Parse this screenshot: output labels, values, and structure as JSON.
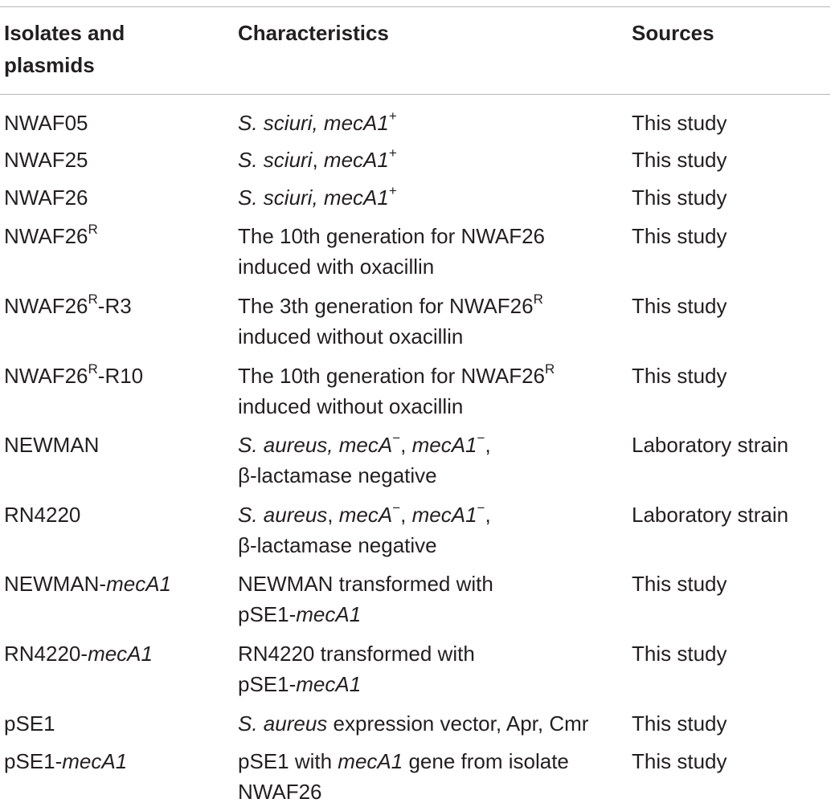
{
  "header": {
    "col1_line1": "Isolates and",
    "col1_line2": "plasmids",
    "col2": "Characteristics",
    "col3": "Sources"
  },
  "rows": [
    {
      "isolate": {
        "a": "NWAF05"
      },
      "char": {
        "a": "S. sciuri, mecA1",
        "a_sup": "+"
      },
      "source": "This study"
    },
    {
      "isolate": {
        "a": "NWAF25"
      },
      "char": {
        "a": "S. sciuri",
        "b": ", ",
        "c": "mecA1",
        "c_sup": "+"
      },
      "source": "This study"
    },
    {
      "isolate": {
        "a": "NWAF26"
      },
      "char": {
        "a": "S. sciuri, mecA1",
        "a_sup": "+"
      },
      "source": "This study"
    },
    {
      "isolate": {
        "a": "NWAF26",
        "sup": "R"
      },
      "char": {
        "line1": "The 10th generation for NWAF26",
        "line2": "induced with oxacillin"
      },
      "source": "This study"
    },
    {
      "isolate": {
        "a": "NWAF26",
        "sup": "R",
        "b": "-R3"
      },
      "char": {
        "line1": "The 3th generation for NWAF26",
        "line1_sup": "R",
        "line2": "induced without oxacillin"
      },
      "source": "This study"
    },
    {
      "isolate": {
        "a": "NWAF26",
        "sup": "R",
        "b": "-R10"
      },
      "char": {
        "line1": "The 10th generation for NWAF26",
        "line1_sup": "R",
        "line2": "induced without oxacillin"
      },
      "source": "This study"
    },
    {
      "isolate": {
        "a": "NEWMAN"
      },
      "char": {
        "a": "S. aureus, mecA",
        "a_sup": "−",
        "b": ", ",
        "c": "mecA1",
        "c_sup": "−",
        "d": ",",
        "line2": "β-lactamase negative"
      },
      "source": "Laboratory strain"
    },
    {
      "isolate": {
        "a": "RN4220"
      },
      "char": {
        "a": "S. aureus",
        "b": ", ",
        "c": "mecA",
        "c_sup": "−",
        "d": ", ",
        "e": "mecA1",
        "e_sup": "−",
        "f": ",",
        "line2": "β-lactamase negative"
      },
      "source": "Laboratory strain"
    },
    {
      "isolate": {
        "a": "NEWMAN-",
        "b": "mecA1"
      },
      "char": {
        "line1": "NEWMAN transformed with",
        "line2a": "pSE1-",
        "line2b": "mecA1"
      },
      "source": "This study"
    },
    {
      "isolate": {
        "a": "RN4220-",
        "b": "mecA1"
      },
      "char": {
        "line1": "RN4220 transformed with",
        "line2a": "pSE1-",
        "line2b": "mecA1"
      },
      "source": "This study"
    },
    {
      "isolate": {
        "a": "pSE1"
      },
      "char": {
        "a": "S. aureus",
        "b": " expression vector, Apr, Cmr"
      },
      "source": "This study"
    },
    {
      "isolate": {
        "a": "pSE1-",
        "b": "mecA1"
      },
      "char": {
        "a": "pSE1 with ",
        "b": "mecA1",
        "c": " gene from isolate",
        "line2": "NWAF26"
      },
      "source": "This study"
    }
  ]
}
